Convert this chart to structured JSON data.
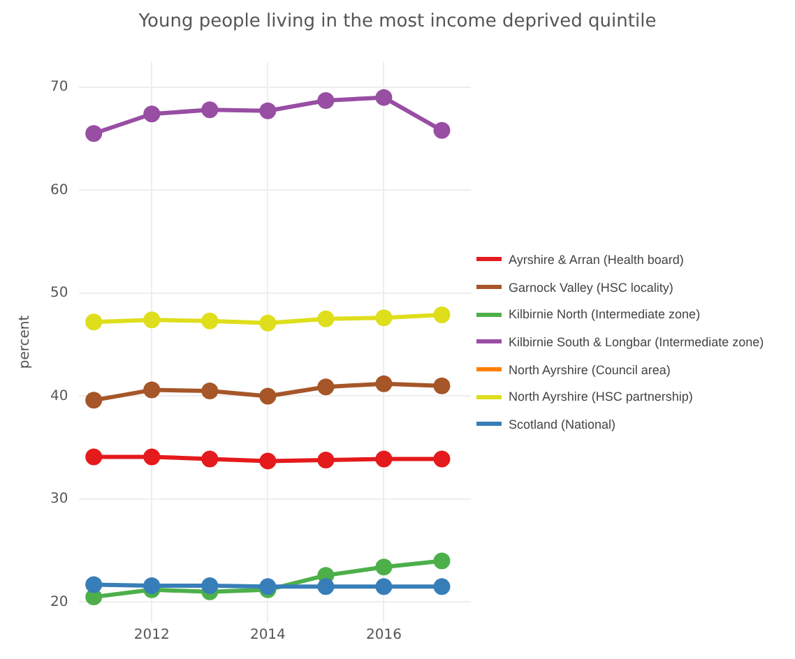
{
  "chart_data": {
    "type": "line",
    "title": "Young people living in the most income deprived quintile",
    "ylabel": "percent",
    "x": [
      2011,
      2012,
      2013,
      2014,
      2015,
      2016,
      2017
    ],
    "series": [
      {
        "name": "Ayrshire & Arran (Health board)",
        "color": "#e41a1c",
        "values": [
          34.1,
          34.1,
          33.9,
          33.7,
          33.8,
          33.9,
          33.9
        ]
      },
      {
        "name": "Garnock Valley (HSC locality)",
        "color": "#a65628",
        "values": [
          39.6,
          40.6,
          40.5,
          40.0,
          40.9,
          41.2,
          41.0
        ]
      },
      {
        "name": "Kilbirnie North (Intermediate zone)",
        "color": "#4daf4a",
        "values": [
          20.5,
          21.2,
          21.0,
          21.2,
          22.6,
          23.4,
          24.0
        ]
      },
      {
        "name": "Kilbirnie South & Longbar (Intermediate zone)",
        "color": "#984ea3",
        "values": [
          65.5,
          67.4,
          67.8,
          67.7,
          68.7,
          69.0,
          65.8
        ]
      },
      {
        "name": "North Ayrshire (Council area)",
        "color": "#ff7f00",
        "values": [
          null,
          null,
          null,
          null,
          null,
          null,
          null
        ]
      },
      {
        "name": "North Ayrshire (HSC partnership)",
        "color": "#dede1c",
        "values": [
          47.2,
          47.4,
          47.3,
          47.1,
          47.5,
          47.6,
          47.9
        ]
      },
      {
        "name": "Scotland (National)",
        "color": "#377eb8",
        "values": [
          21.7,
          21.6,
          21.6,
          21.5,
          21.5,
          21.5,
          21.5
        ]
      }
    ],
    "xlim": [
      2010.75,
      2017.5
    ],
    "xticks": [
      2012,
      2014,
      2016
    ],
    "ylim": [
      18,
      72.5
    ],
    "yticks": [
      20,
      30,
      40,
      50,
      60,
      70
    ],
    "grid": true,
    "legend": "right",
    "marker": "circle",
    "line_style": "solid"
  }
}
